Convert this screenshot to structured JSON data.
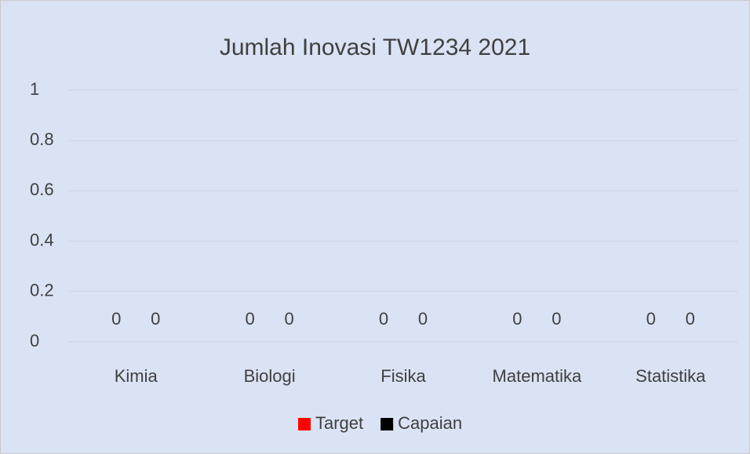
{
  "chart_data": {
    "type": "bar",
    "title": "Jumlah Inovasi TW1234 2021",
    "categories": [
      "Kimia",
      "Biologi",
      "Fisika",
      "Matematika",
      "Statistika"
    ],
    "series": [
      {
        "name": "Target",
        "color": "#ff0000",
        "values": [
          0,
          0,
          0,
          0,
          0
        ]
      },
      {
        "name": "Capaian",
        "color": "#000000",
        "values": [
          0,
          0,
          0,
          0,
          0
        ]
      }
    ],
    "ylim": [
      0,
      1
    ],
    "yticks": [
      0,
      0.2,
      0.4,
      0.6,
      0.8,
      1
    ],
    "grid": true,
    "legend": "bottom"
  }
}
